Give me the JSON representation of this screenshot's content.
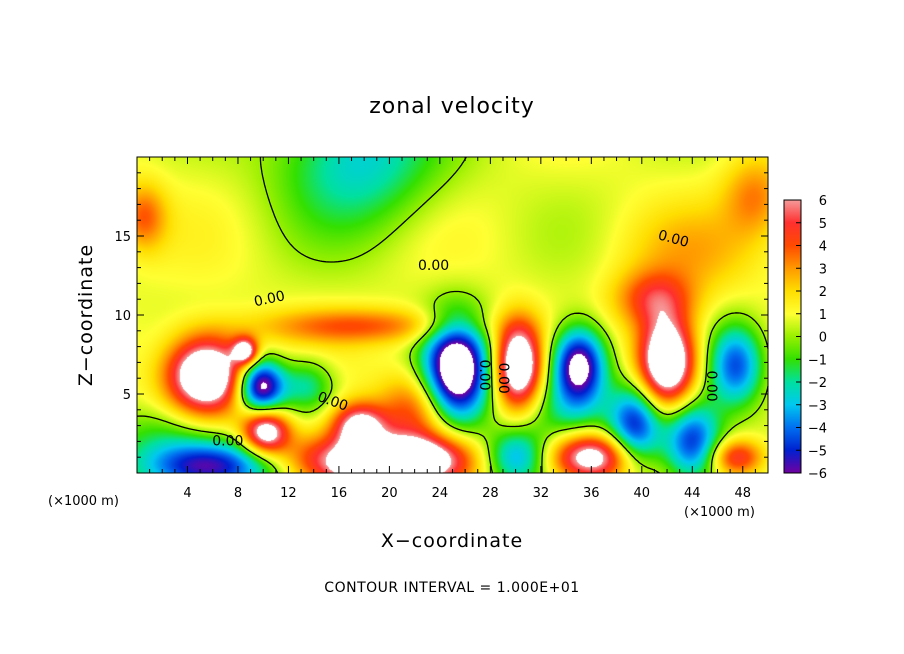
{
  "chart_data": {
    "type": "heatmap",
    "title": "zonal velocity",
    "xlabel": "X−coordinate",
    "ylabel": "Z−coordinate",
    "x_unit": "(×1000 m)",
    "x_unit_right": "(×1000 m)",
    "xlim": [
      0,
      50
    ],
    "ylim": [
      0,
      20
    ],
    "x_ticks": [
      "4",
      "8",
      "12",
      "16",
      "20",
      "24",
      "28",
      "32",
      "36",
      "40",
      "44",
      "48"
    ],
    "x_tick_values": [
      4,
      8,
      12,
      16,
      20,
      24,
      28,
      32,
      36,
      40,
      44,
      48
    ],
    "y_ticks": [
      "5",
      "10",
      "15"
    ],
    "y_tick_values": [
      5,
      10,
      15
    ],
    "colorbar": {
      "labels": [
        "6",
        "5",
        "4",
        "3",
        "2",
        "1",
        "0",
        "−1",
        "−2",
        "−3",
        "−4",
        "−5",
        "−6"
      ],
      "min": -6,
      "max": 6,
      "colors": [
        "#f59a9a",
        "#ff3030",
        "#ff4a00",
        "#ff9900",
        "#ffdd00",
        "#ffff33",
        "#99f000",
        "#33e000",
        "#00e0a0",
        "#00c8f0",
        "#0070f0",
        "#0020d0",
        "#7000a0"
      ]
    },
    "contour_labels": [
      "0.00",
      "0.00",
      "0.00",
      "0.00",
      "0.00",
      "0.00",
      "0.00",
      "0.00"
    ],
    "footer": "CONTOUR INTERVAL = 1.000E+01",
    "features": [
      {
        "x": 5.5,
        "z": 6.2,
        "u": 9.0,
        "sx": 2.2,
        "sz": 1.7
      },
      {
        "x": 9.8,
        "z": 5.5,
        "u": -8.0,
        "sx": 1.3,
        "sz": 1.2
      },
      {
        "x": 8.6,
        "z": 7.7,
        "u": 6.0,
        "sx": 0.7,
        "sz": 0.6
      },
      {
        "x": 10.2,
        "z": 2.6,
        "u": 7.0,
        "sx": 1.3,
        "sz": 1.0
      },
      {
        "x": 17.6,
        "z": 3.0,
        "u": 6.0,
        "sx": 1.5,
        "sz": 1.0
      },
      {
        "x": 5.5,
        "z": 0.4,
        "u": -7.0,
        "sx": 3.8,
        "sz": 1.2
      },
      {
        "x": 14.5,
        "z": 0.8,
        "u": 4.5,
        "sx": 2.5,
        "sz": 1.2
      },
      {
        "x": 18.5,
        "z": 0.4,
        "u": 7.0,
        "sx": 2.0,
        "sz": 1.1
      },
      {
        "x": 25.3,
        "z": 6.5,
        "u": -9.0,
        "sx": 1.8,
        "sz": 2.3
      },
      {
        "x": 22.0,
        "z": 4.0,
        "u": 3.5,
        "sx": 2.0,
        "sz": 1.7
      },
      {
        "x": 22.5,
        "z": 0.8,
        "u": 7.0,
        "sx": 2.8,
        "sz": 1.1
      },
      {
        "x": 30.2,
        "z": 6.8,
        "u": 8.0,
        "sx": 1.3,
        "sz": 1.9
      },
      {
        "x": 30.0,
        "z": 1.0,
        "u": -4.0,
        "sx": 1.7,
        "sz": 1.3
      },
      {
        "x": 35.0,
        "z": 6.8,
        "u": -8.0,
        "sx": 1.5,
        "sz": 1.7
      },
      {
        "x": 36.0,
        "z": 1.0,
        "u": 7.0,
        "sx": 2.3,
        "sz": 1.1
      },
      {
        "x": 39.5,
        "z": 3.0,
        "u": -6.0,
        "sx": 1.5,
        "sz": 1.8
      },
      {
        "x": 42.0,
        "z": 7.0,
        "u": 9.0,
        "sx": 1.6,
        "sz": 2.0
      },
      {
        "x": 41.0,
        "z": 11.0,
        "u": 3.5,
        "sx": 2.2,
        "sz": 1.3
      },
      {
        "x": 44.0,
        "z": 2.0,
        "u": -6.0,
        "sx": 1.6,
        "sz": 1.8
      },
      {
        "x": 47.5,
        "z": 6.8,
        "u": -5.0,
        "sx": 1.5,
        "sz": 1.8
      },
      {
        "x": 47.5,
        "z": 1.0,
        "u": 4.0,
        "sx": 1.5,
        "sz": 0.8
      },
      {
        "x": 13.5,
        "z": 5.5,
        "u": -3.0,
        "sx": 1.5,
        "sz": 1.2
      },
      {
        "x": 18.0,
        "z": 9.3,
        "u": 3.0,
        "sx": 6.0,
        "sz": 0.8
      },
      {
        "x": 17.5,
        "z": 20.0,
        "u": -3.5,
        "sx": 4.5,
        "sz": 3.2
      },
      {
        "x": 0.5,
        "z": 16.2,
        "u": 3.0,
        "sx": 1.3,
        "sz": 1.5
      },
      {
        "x": 49.0,
        "z": 17.5,
        "u": 2.5,
        "sx": 1.8,
        "sz": 1.8
      },
      {
        "x": 44.0,
        "z": 14.0,
        "u": 1.5,
        "sx": 4.0,
        "sz": 2.0
      },
      {
        "x": 2.0,
        "z": 2.6,
        "u": -1.5,
        "sx": 3.0,
        "sz": 1.2
      },
      {
        "x": 34.0,
        "z": 4.0,
        "u": -2.0,
        "sx": 2.5,
        "sz": 1.5
      }
    ],
    "background_u": 0.8
  }
}
